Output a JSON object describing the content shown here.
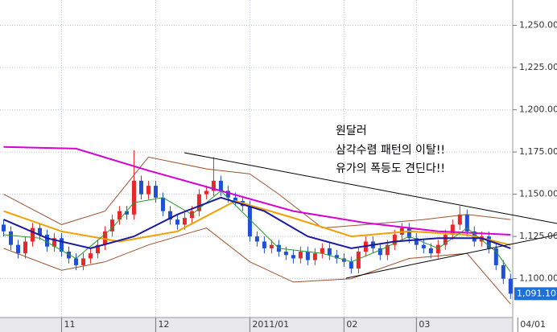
{
  "chart_data": {
    "type": "candlestick",
    "annotations": [
      "원달러",
      "삼각수렴 패턴의 이탈!!",
      "유가의 폭등도 견딘다!!"
    ],
    "up_color": "#e8262b",
    "down_color": "#1e4fd6",
    "xlim": [
      -0.5,
      70.3
    ],
    "ylim": [
      1077,
      1265
    ],
    "yticks": [
      {
        "value": 1100,
        "label": "1,100.00"
      },
      {
        "value": 1125,
        "label": "1,125.00"
      },
      {
        "value": 1150,
        "label": "1,150.00"
      },
      {
        "value": 1175,
        "label": "1,175.00"
      },
      {
        "value": 1200,
        "label": "1,200.00"
      },
      {
        "value": 1225,
        "label": "1,225.00"
      },
      {
        "value": 1250,
        "label": "1,250.00"
      }
    ],
    "xticks": [
      {
        "value": 8,
        "label": "11"
      },
      {
        "value": 21,
        "label": "12"
      },
      {
        "value": 34,
        "label": "2011/01"
      },
      {
        "value": 47,
        "label": "02"
      },
      {
        "value": 57,
        "label": "03"
      },
      {
        "value": 71,
        "label": "04/01"
      }
    ],
    "grid": true,
    "open": [
      1132,
      1128,
      1120,
      1115,
      1122,
      1130,
      1126,
      1119,
      1124,
      1116,
      1112,
      1108,
      1112,
      1115,
      1120,
      1128,
      1135,
      1140,
      1138,
      1158,
      1150,
      1155,
      1148,
      1140,
      1135,
      1132,
      1136,
      1140,
      1150,
      1152,
      1158,
      1152,
      1148,
      1146,
      1143,
      1125,
      1122,
      1118,
      1120,
      1116,
      1114,
      1112,
      1116,
      1111,
      1115,
      1118,
      1114,
      1112,
      1110,
      1106,
      1116,
      1122,
      1118,
      1114,
      1120,
      1126,
      1130,
      1124,
      1120,
      1118,
      1115,
      1120,
      1126,
      1132,
      1138,
      1128,
      1122,
      1125,
      1118,
      1108,
      1100
    ],
    "high": [
      1135,
      1131,
      1123,
      1125,
      1133,
      1133,
      1129,
      1127,
      1127,
      1119,
      1115,
      1115,
      1118,
      1123,
      1131,
      1138,
      1143,
      1143,
      1176,
      1161,
      1158,
      1158,
      1151,
      1143,
      1138,
      1139,
      1143,
      1153,
      1155,
      1172,
      1161,
      1155,
      1151,
      1149,
      1146,
      1128,
      1125,
      1123,
      1123,
      1119,
      1117,
      1119,
      1119,
      1118,
      1121,
      1121,
      1117,
      1115,
      1113,
      1119,
      1125,
      1125,
      1121,
      1123,
      1129,
      1133,
      1133,
      1127,
      1123,
      1121,
      1123,
      1129,
      1135,
      1143,
      1141,
      1131,
      1128,
      1128,
      1121,
      1111,
      1103
    ],
    "low": [
      1125,
      1117,
      1112,
      1112,
      1119,
      1123,
      1116,
      1116,
      1113,
      1109,
      1105,
      1105,
      1109,
      1112,
      1117,
      1125,
      1132,
      1135,
      1135,
      1147,
      1147,
      1145,
      1137,
      1132,
      1129,
      1129,
      1133,
      1137,
      1147,
      1149,
      1149,
      1145,
      1143,
      1140,
      1122,
      1119,
      1115,
      1115,
      1113,
      1111,
      1109,
      1109,
      1108,
      1108,
      1112,
      1111,
      1109,
      1107,
      1103,
      1103,
      1113,
      1115,
      1111,
      1111,
      1117,
      1123,
      1121,
      1117,
      1115,
      1112,
      1112,
      1117,
      1123,
      1129,
      1125,
      1119,
      1119,
      1115,
      1105,
      1097,
      1088
    ],
    "close": [
      1128,
      1120,
      1115,
      1122,
      1130,
      1126,
      1119,
      1124,
      1116,
      1112,
      1108,
      1112,
      1115,
      1120,
      1128,
      1135,
      1140,
      1138,
      1158,
      1150,
      1155,
      1148,
      1140,
      1135,
      1132,
      1136,
      1140,
      1150,
      1152,
      1158,
      1152,
      1148,
      1146,
      1143,
      1125,
      1122,
      1118,
      1120,
      1116,
      1114,
      1112,
      1116,
      1111,
      1115,
      1118,
      1114,
      1112,
      1110,
      1106,
      1116,
      1122,
      1118,
      1114,
      1120,
      1126,
      1130,
      1124,
      1120,
      1118,
      1115,
      1120,
      1126,
      1132,
      1138,
      1128,
      1122,
      1125,
      1118,
      1108,
      1100,
      1091.1
    ],
    "last_value_label": "1,091.10",
    "lines": [
      {
        "color": "#a0522d",
        "width": 1,
        "x": [
          0,
          8,
          14,
          20,
          28,
          34,
          38,
          44,
          50,
          58,
          64,
          70
        ],
        "values": [
          1150,
          1132,
          1140,
          1172,
          1165,
          1162,
          1150,
          1130,
          1132,
          1135,
          1138,
          1135
        ]
      },
      {
        "color": "#a0522d",
        "width": 1,
        "x": [
          0,
          8,
          14,
          20,
          28,
          34,
          40,
          48,
          56,
          64,
          70
        ],
        "values": [
          1118,
          1105,
          1110,
          1120,
          1130,
          1110,
          1098,
          1100,
          1112,
          1115,
          1085
        ]
      },
      {
        "color": "#d400d4",
        "width": 2,
        "x": [
          0,
          10,
          20,
          30,
          40,
          50,
          60,
          70
        ],
        "values": [
          1178,
          1177,
          1164,
          1152,
          1140,
          1133,
          1128,
          1126
        ]
      },
      {
        "color": "#f0a000",
        "width": 2,
        "x": [
          0,
          8,
          16,
          24,
          32,
          40,
          48,
          56,
          64,
          70
        ],
        "values": [
          1140,
          1128,
          1122,
          1128,
          1146,
          1136,
          1125,
          1128,
          1126,
          1120
        ]
      },
      {
        "color": "#2a9a2a",
        "width": 1,
        "x": [
          0,
          5,
          10,
          15,
          18,
          22,
          26,
          30,
          34,
          38,
          44,
          48,
          52,
          56,
          60,
          64,
          68,
          70
        ],
        "values": [
          1126,
          1124,
          1112,
          1130,
          1145,
          1148,
          1138,
          1152,
          1135,
          1118,
          1115,
          1110,
          1117,
          1125,
          1118,
          1130,
          1116,
          1104
        ]
      },
      {
        "color": "#1a1aa0",
        "width": 2,
        "x": [
          0,
          6,
          12,
          18,
          24,
          30,
          36,
          42,
          48,
          54,
          60,
          66,
          70
        ],
        "values": [
          1135,
          1124,
          1118,
          1125,
          1138,
          1148,
          1140,
          1125,
          1118,
          1122,
          1124,
          1124,
          1118
        ]
      }
    ]
  }
}
